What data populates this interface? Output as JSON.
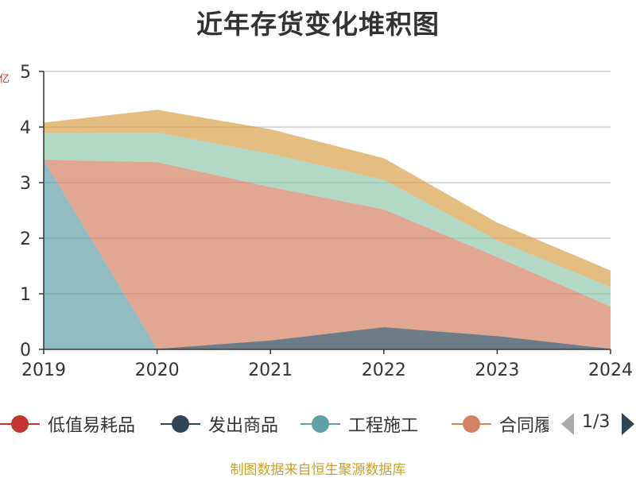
{
  "chart_data": {
    "type": "area",
    "stacked": true,
    "title": "近年存货变化堆积图",
    "xlabel": "",
    "ylabel": "亿",
    "categories": [
      "2019",
      "2020",
      "2021",
      "2022",
      "2023",
      "2024"
    ],
    "ylim": [
      0,
      5
    ],
    "yticks": [
      "0",
      "1",
      "2",
      "3",
      "4",
      "5"
    ],
    "grid": true,
    "series": [
      {
        "name": "低值易耗品",
        "color": "#c23531",
        "values": [
          0.01,
          0.01,
          0.01,
          0.01,
          0.01,
          0.01
        ]
      },
      {
        "name": "发出商品",
        "color": "#2f4554",
        "values": [
          0.0,
          0.0,
          0.15,
          0.39,
          0.23,
          0.0
        ]
      },
      {
        "name": "工程施工",
        "color": "#61a0a8",
        "values": [
          3.4,
          0.0,
          0.0,
          0.0,
          0.0,
          0.0
        ]
      },
      {
        "name": "合同履",
        "color": "#d48265",
        "values": [
          0.0,
          3.36,
          2.76,
          2.12,
          1.42,
          0.76
        ]
      },
      {
        "name": "",
        "color": "#91c7ae",
        "values": [
          0.48,
          0.53,
          0.6,
          0.53,
          0.3,
          0.35
        ]
      },
      {
        "name": "",
        "color": "#d8a24a",
        "values": [
          0.19,
          0.41,
          0.44,
          0.39,
          0.32,
          0.3
        ]
      }
    ],
    "legend_placement": "bottom"
  },
  "legend": {
    "items": [
      {
        "label": "低值易耗品",
        "icon": "circle-line-icon",
        "color": "#c23531"
      },
      {
        "label": "发出商品",
        "icon": "circle-line-icon",
        "color": "#2f4554"
      },
      {
        "label": "工程施工",
        "icon": "circle-line-icon",
        "color": "#61a0a8"
      },
      {
        "label": "合同履",
        "icon": "circle-line-icon",
        "color": "#d48265"
      }
    ],
    "page": "1/3"
  },
  "source": "制图数据来自恒生聚源数据库"
}
